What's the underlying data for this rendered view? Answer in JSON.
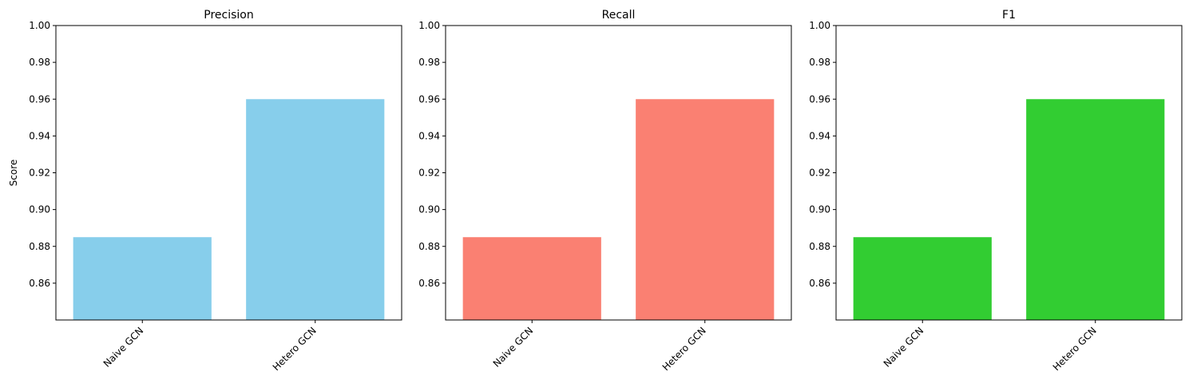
{
  "chart_data": [
    {
      "type": "bar",
      "title": "Precision",
      "categories": [
        "Naive GCN",
        "Hetero GCN"
      ],
      "values": [
        0.885,
        0.96
      ],
      "ylabel": "Score",
      "ylim": [
        0.84,
        1.0
      ],
      "yticks": [
        "0.86",
        "0.88",
        "0.90",
        "0.92",
        "0.94",
        "0.96",
        "0.98",
        "1.00"
      ],
      "color": "#87CEEB",
      "grid": false
    },
    {
      "type": "bar",
      "title": "Recall",
      "categories": [
        "Naive GCN",
        "Hetero GCN"
      ],
      "values": [
        0.885,
        0.96
      ],
      "ylabel": "",
      "ylim": [
        0.84,
        1.0
      ],
      "yticks": [
        "0.86",
        "0.88",
        "0.90",
        "0.92",
        "0.94",
        "0.96",
        "0.98",
        "1.00"
      ],
      "color": "#FA8072",
      "grid": false
    },
    {
      "type": "bar",
      "title": "F1",
      "categories": [
        "Naive GCN",
        "Hetero GCN"
      ],
      "values": [
        0.885,
        0.96
      ],
      "ylabel": "",
      "ylim": [
        0.84,
        1.0
      ],
      "yticks": [
        "0.86",
        "0.88",
        "0.90",
        "0.92",
        "0.94",
        "0.96",
        "0.98",
        "1.00"
      ],
      "color": "#32CD32",
      "grid": false
    }
  ]
}
